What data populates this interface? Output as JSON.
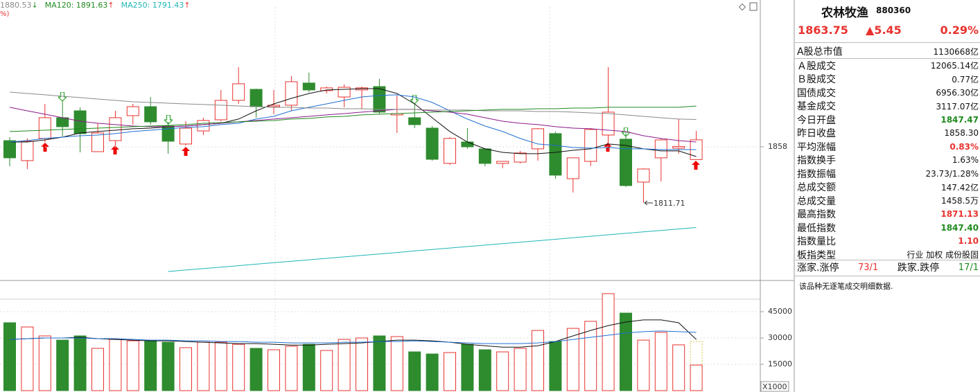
{
  "chart_data": [
    {
      "type": "candlestick",
      "open": [
        1863.1,
        1846.6,
        1864.9,
        1882.0,
        1887.7,
        1854.0,
        1863.1,
        1883.7,
        1891.1,
        1875.1,
        1860.3,
        1871.1,
        1880.3,
        1896.3,
        1905.4,
        1891.1,
        1892.3,
        1910.6,
        1904.3,
        1899.1,
        1904.9,
        1907.7,
        1884.3,
        1882.0,
        1873.4,
        1844.3,
        1862.0,
        1856.3,
        1844.3,
        1845.4,
        1856.3,
        1868.9,
        1831.7,
        1846.0,
        1867.7,
        1864.3,
        1828.9,
        1848.9,
        1856.9,
        1847.47
      ],
      "high": [
        1866.0,
        1864.9,
        1893.4,
        1896.3,
        1890.6,
        1877.4,
        1887.7,
        1893.4,
        1899.1,
        1878.6,
        1879.1,
        1882.0,
        1904.9,
        1923.7,
        1906.0,
        1904.9,
        1916.3,
        1919.2,
        1907.7,
        1909.4,
        1907.7,
        1914.0,
        1900.3,
        1893.4,
        1875.1,
        1866.0,
        1873.4,
        1856.9,
        1846.0,
        1854.6,
        1873.4,
        1870.6,
        1848.9,
        1873.4,
        1923.7,
        1870.6,
        1840.3,
        1864.9,
        1880.9,
        1871.13
      ],
      "low": [
        1842.0,
        1839.7,
        1862.0,
        1866.6,
        1853.4,
        1854.0,
        1859.1,
        1876.3,
        1876.3,
        1852.3,
        1859.1,
        1867.7,
        1879.1,
        1893.4,
        1882.0,
        1884.9,
        1887.7,
        1903.1,
        1902.0,
        1890.6,
        1888.9,
        1884.9,
        1869.4,
        1873.4,
        1846.6,
        1843.1,
        1856.3,
        1842.0,
        1840.3,
        1844.3,
        1846.6,
        1831.7,
        1820.3,
        1842.0,
        1854.6,
        1824.9,
        1811.71,
        1829.4,
        1852.3,
        1847.4
      ],
      "close": [
        1848.9,
        1862.6,
        1882.0,
        1874.6,
        1868.9,
        1869.4,
        1882.0,
        1891.1,
        1878.6,
        1862.6,
        1873.4,
        1879.7,
        1896.3,
        1910.0,
        1891.1,
        1892.3,
        1911.7,
        1904.9,
        1906.6,
        1907.1,
        1906.6,
        1886.6,
        1885.4,
        1876.3,
        1847.7,
        1864.9,
        1858.0,
        1844.3,
        1846.0,
        1852.9,
        1872.9,
        1834.6,
        1848.9,
        1872.3,
        1886.6,
        1826.0,
        1839.7,
        1863.7,
        1858.3,
        1863.75
      ],
      "up_color": "#e8322e",
      "down_color": "#2e8b2e",
      "series": [
        {
          "color": "#111111",
          "values": [
            1862.0,
            1862.0,
            1863.7,
            1866.0,
            1869.4,
            1870.6,
            1871.7,
            1872.9,
            1873.4,
            1874.6,
            1875.1,
            1876.3,
            1877.4,
            1880.9,
            1887.7,
            1893.4,
            1898.0,
            1902.0,
            1904.9,
            1905.4,
            1906.0,
            1906.0,
            1902.0,
            1893.4,
            1882.0,
            1870.6,
            1862.0,
            1856.3,
            1853.4,
            1852.3,
            1852.3,
            1853.4,
            1855.1,
            1856.3,
            1860.3,
            1859.1,
            1856.3,
            1854.6,
            1854.6,
            1850.0
          ]
        },
        {
          "color": "#1f6fd1",
          "values": [
            1862.0,
            1863.1,
            1864.9,
            1866.0,
            1867.1,
            1867.7,
            1868.9,
            1870.6,
            1871.7,
            1872.9,
            1874.0,
            1874.6,
            1876.3,
            1877.4,
            1880.9,
            1883.1,
            1887.7,
            1890.6,
            1893.4,
            1896.3,
            1899.1,
            1900.3,
            1900.9,
            1899.1,
            1894.6,
            1887.7,
            1880.9,
            1875.1,
            1870.6,
            1864.9,
            1860.3,
            1859.1,
            1857.4,
            1856.9,
            1857.4,
            1856.3,
            1856.3,
            1855.7,
            1855.7,
            1855.7
          ]
        },
        {
          "color": "#8b1a8b",
          "values": [
            1890.6,
            1887.7,
            1884.9,
            1882.0,
            1879.1,
            1877.4,
            1876.3,
            1875.1,
            1874.6,
            1874.6,
            1875.1,
            1876.3,
            1877.4,
            1878.6,
            1879.7,
            1880.9,
            1882.0,
            1883.1,
            1884.3,
            1885.4,
            1886.6,
            1887.7,
            1888.9,
            1888.9,
            1887.7,
            1886.6,
            1884.9,
            1882.0,
            1879.1,
            1877.4,
            1876.3,
            1874.6,
            1873.4,
            1872.9,
            1871.7,
            1870.6,
            1867.1,
            1864.9,
            1863.1,
            1862.0
          ]
        },
        {
          "name": "1880.53",
          "trend": "↓",
          "trend_color": "#2e8b2e",
          "color": "#8a8a8a",
          "values": [
            1903.1,
            1902.0,
            1900.9,
            1899.7,
            1898.6,
            1897.4,
            1896.3,
            1895.1,
            1894.6,
            1894.0,
            1893.4,
            1892.9,
            1892.3,
            1891.7,
            1891.1,
            1890.6,
            1890.6,
            1890.0,
            1890.0,
            1889.4,
            1889.4,
            1888.9,
            1888.9,
            1888.9,
            1888.3,
            1888.3,
            1888.3,
            1887.7,
            1887.7,
            1887.7,
            1887.1,
            1887.1,
            1886.6,
            1886.0,
            1885.4,
            1884.3,
            1883.1,
            1882.0,
            1880.9,
            1880.53
          ]
        },
        {
          "name": "MA120: 1891.63",
          "trend": "↑",
          "trend_color": "#e8322e",
          "color": "#1e8a1e",
          "values": [
            1870.6,
            1871.1,
            1871.7,
            1872.3,
            1872.9,
            1873.4,
            1874.0,
            1874.6,
            1875.1,
            1875.7,
            1876.3,
            1877.4,
            1878.0,
            1878.6,
            1879.1,
            1879.7,
            1880.9,
            1881.4,
            1882.6,
            1883.1,
            1884.3,
            1884.9,
            1885.4,
            1886.0,
            1886.6,
            1887.1,
            1887.7,
            1888.3,
            1888.9,
            1888.9,
            1889.4,
            1889.4,
            1890.0,
            1890.0,
            1890.6,
            1890.6,
            1890.6,
            1890.6,
            1890.6,
            1891.63
          ]
        },
        {
          "name": "MA250: 1791.43",
          "trend": "↑",
          "trend_color": "#e8322e",
          "color": "#1fb5b5",
          "values": [
            null,
            null,
            null,
            null,
            null,
            null,
            null,
            null,
            null,
            1755.1,
            1756.3,
            1757.5,
            1758.7,
            1759.9,
            1761.2,
            1762.4,
            1763.6,
            1764.8,
            1766.0,
            1767.2,
            1768.4,
            1769.6,
            1770.8,
            1772.1,
            1773.3,
            1774.5,
            1775.7,
            1776.9,
            1778.1,
            1779.3,
            1780.5,
            1781.7,
            1783.0,
            1784.2,
            1785.4,
            1786.6,
            1787.8,
            1789.0,
            1790.2,
            1791.43
          ]
        }
      ],
      "fragment": "%)",
      "ylim": [
        1747.7,
        1973.4
      ],
      "yticks": [
        1858
      ],
      "grid": true
    },
    {
      "type": "bar",
      "values": [
        38700,
        36300,
        31200,
        28800,
        31200,
        24100,
        29200,
        28400,
        28400,
        27600,
        24500,
        27600,
        27600,
        26400,
        24100,
        23300,
        25300,
        26400,
        22900,
        29200,
        30000,
        31200,
        30800,
        22100,
        20900,
        21700,
        26400,
        23300,
        22100,
        24100,
        34300,
        28000,
        35500,
        39500,
        55300,
        44200,
        28800,
        33200,
        26100,
        14585
      ],
      "forecast": 28000,
      "forecast_color": "#d8c23a",
      "series": [
        {
          "color": "#111111",
          "values": [
            29200,
            29600,
            30000,
            30000,
            30400,
            29600,
            29200,
            28800,
            28400,
            28400,
            28000,
            27600,
            27200,
            26800,
            26800,
            26400,
            26000,
            26000,
            26400,
            26800,
            27200,
            28000,
            28800,
            28800,
            28400,
            27600,
            26400,
            25600,
            24800,
            24800,
            25600,
            28000,
            31200,
            34300,
            37100,
            39100,
            40300,
            40300,
            38700,
            29200
          ]
        },
        {
          "color": "#1f6fd1",
          "values": [
            29200,
            29600,
            30000,
            30000,
            30000,
            29600,
            29600,
            29200,
            28800,
            28800,
            28400,
            28400,
            28000,
            28000,
            27600,
            27600,
            27200,
            27200,
            27200,
            27600,
            27600,
            28000,
            28000,
            28400,
            28000,
            27600,
            27200,
            26800,
            26800,
            26800,
            27200,
            28000,
            29200,
            30400,
            31600,
            32800,
            33600,
            34000,
            33600,
            33200
          ]
        }
      ],
      "unit_label": "X1000",
      "ylim": [
        0,
        62000
      ],
      "yticks": [
        15000,
        30000,
        45000
      ],
      "grid": true
    }
  ],
  "panel": {
    "name": "农林牧渔",
    "code": "880360",
    "price": "1863.75",
    "change": "▲5.45",
    "change_pct": "0.29%",
    "rows": [
      {
        "label": "A股总市值",
        "value": "1130668亿"
      },
      {
        "label": "Ａ股成交",
        "value": "12065.14亿"
      },
      {
        "label": "Ｂ股成交",
        "value": "0.77亿"
      },
      {
        "label": "国债成交",
        "value": "6956.30亿"
      },
      {
        "label": "基金成交",
        "value": "3117.07亿"
      },
      {
        "label": "今日开盘",
        "value": "1847.47",
        "color": "#1e8a1e"
      },
      {
        "label": "昨日收盘",
        "value": "1858.30"
      },
      {
        "label": "平均涨幅",
        "value": "0.83%",
        "color": "#e8322e"
      },
      {
        "label": "指数换手",
        "value": "1.63%"
      },
      {
        "label": "指数振幅",
        "value": "23.73/1.28%"
      },
      {
        "label": "总成交额",
        "value": "147.42亿"
      },
      {
        "label": "总成交量",
        "value": "1458.5万"
      },
      {
        "label": "最高指数",
        "value": "1871.13",
        "color": "#e8322e"
      },
      {
        "label": "最低指数",
        "value": "1847.40",
        "color": "#1e8a1e"
      },
      {
        "label": "指数量比",
        "value": "1.10",
        "color": "#e8322e"
      },
      {
        "label": "板指类型",
        "value": "行业 加权 成份股固"
      }
    ],
    "breadth": {
      "up_label": "涨家.涨停",
      "up_value": "73/1",
      "down_label": "跌家.跌停",
      "down_value": "17/1"
    },
    "note": "该品种无逐笔成交明细数据."
  }
}
